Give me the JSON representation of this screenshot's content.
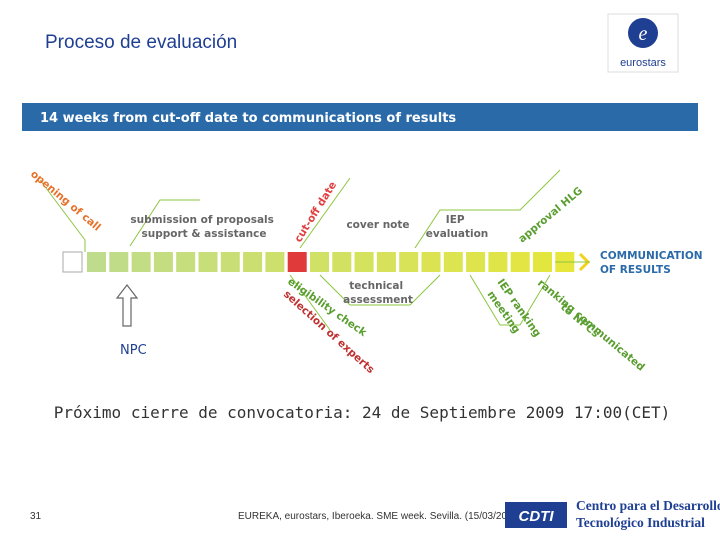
{
  "header": {
    "title": "Proceso de evaluación",
    "logo": "eurostars"
  },
  "timeline": {
    "banner": "14 weeks from cut-off date to communications of results",
    "opening": "opening of call",
    "submission": [
      "submission of proposals",
      "support & assistance"
    ],
    "cutoff": "cut-off date",
    "cover": "cover note",
    "iep_evaluation": [
      "IEP",
      "evaluation"
    ],
    "approval": "approval HLG",
    "communication": [
      "COMMUNICATION",
      "OF RESULTS"
    ],
    "eligibility": "eligibility check",
    "selection": "selection of experts",
    "technical": [
      "technical",
      "assessment"
    ],
    "ranking_meeting": [
      "IEP ranking",
      "meeting"
    ],
    "ranking_communicated": [
      "ranking communicated",
      "to NPCs"
    ],
    "npc": "NPC"
  },
  "notice": "Próximo cierre de convocatoria: 24 de Septiembre 2009 17:00(CET)",
  "footer": {
    "page": "31",
    "text": "EUREKA, eurostars, Iberoeka. SME week. Sevilla. (15/03/20",
    "cdti": "CDTI",
    "org": [
      "Centro para el Desarrollo",
      "Tecnológico Industrial"
    ]
  }
}
